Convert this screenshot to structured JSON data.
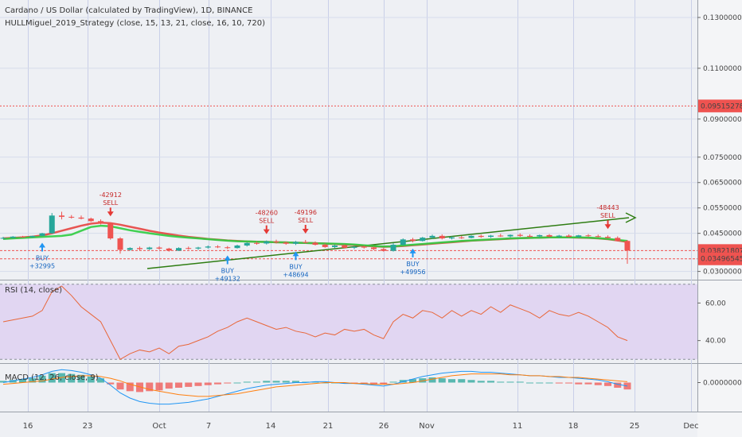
{
  "header": {
    "symbol_title": "Cardano / US Dollar (calculated by TradingView), 1D, BINANCE",
    "strategy_title": "HULLMiguel_2019_Strategy (close, 15, 13, 21, close, 16, 10, 720)"
  },
  "rsi_panel": {
    "title": "RSI (14, close)"
  },
  "macd_panel": {
    "title": "MACD (12, 26, close, 9)"
  },
  "colors": {
    "up": "#26a69a",
    "down": "#ef5350",
    "hull_fast": "#e53935",
    "hull_slow": "#2ecc40",
    "trendline": "#2e7d12",
    "rsi": "#e8673a",
    "rsi_band": "#e1d6f2",
    "macd": "#2196f3",
    "signal": "#ff7f0e"
  },
  "chart_data": [
    {
      "type": "candlestick",
      "title": "Cardano / US Dollar (calculated by TradingView), 1D, BINANCE",
      "xlabel": "",
      "ylabel": "",
      "x_ticks": [
        "16",
        "23",
        "Oct",
        "7",
        "14",
        "21",
        "26",
        "Nov",
        "11",
        "18",
        "25",
        "Dec"
      ],
      "y_ticks": [
        "0.13000000",
        "0.11000000",
        "0.09000000",
        "0.07500000",
        "0.06500000",
        "0.05500000",
        "0.04500000",
        "0.03000000"
      ],
      "ylim": [
        0.028,
        0.135
      ],
      "price_tags": [
        {
          "value": 0.09515278,
          "label": "0.09515278"
        },
        {
          "value": 0.03821807,
          "label": "0.03821807"
        },
        {
          "value": 0.03496545,
          "label": "0.03496545"
        }
      ],
      "candles": [
        [
          0.043,
          0.0436,
          0.0428,
          0.0432
        ],
        [
          0.0432,
          0.0439,
          0.043,
          0.0437
        ],
        [
          0.0437,
          0.044,
          0.0433,
          0.0435
        ],
        [
          0.0435,
          0.0441,
          0.0432,
          0.044
        ],
        [
          0.044,
          0.0452,
          0.0438,
          0.045
        ],
        [
          0.045,
          0.053,
          0.0448,
          0.052
        ],
        [
          0.052,
          0.0535,
          0.0505,
          0.0515
        ],
        [
          0.0515,
          0.0522,
          0.0508,
          0.0512
        ],
        [
          0.0512,
          0.052,
          0.0505,
          0.0508
        ],
        [
          0.0508,
          0.0512,
          0.0495,
          0.0498
        ],
        [
          0.0498,
          0.0505,
          0.0485,
          0.0488
        ],
        [
          0.0488,
          0.0492,
          0.0425,
          0.043
        ],
        [
          0.043,
          0.0435,
          0.037,
          0.0385
        ],
        [
          0.0385,
          0.0395,
          0.0382,
          0.0392
        ],
        [
          0.0392,
          0.0398,
          0.0383,
          0.0388
        ],
        [
          0.0388,
          0.0397,
          0.0384,
          0.0394
        ],
        [
          0.0394,
          0.0399,
          0.0386,
          0.039
        ],
        [
          0.039,
          0.0393,
          0.0378,
          0.0382
        ],
        [
          0.0382,
          0.0395,
          0.038,
          0.0392
        ],
        [
          0.0392,
          0.0398,
          0.0386,
          0.039
        ],
        [
          0.039,
          0.0397,
          0.0385,
          0.0394
        ],
        [
          0.0394,
          0.0402,
          0.039,
          0.0398
        ],
        [
          0.0398,
          0.0403,
          0.0392,
          0.0395
        ],
        [
          0.0395,
          0.04,
          0.0388,
          0.0392
        ],
        [
          0.0392,
          0.0405,
          0.039,
          0.0402
        ],
        [
          0.0402,
          0.0415,
          0.0398,
          0.0412
        ],
        [
          0.0412,
          0.0418,
          0.0405,
          0.041
        ],
        [
          0.041,
          0.0422,
          0.0406,
          0.0418
        ],
        [
          0.0418,
          0.0425,
          0.041,
          0.0414
        ],
        [
          0.0414,
          0.0418,
          0.0405,
          0.0409
        ],
        [
          0.0409,
          0.042,
          0.0404,
          0.0416
        ],
        [
          0.0416,
          0.0424,
          0.041,
          0.0413
        ],
        [
          0.0413,
          0.0418,
          0.0402,
          0.0405
        ],
        [
          0.0405,
          0.041,
          0.0393,
          0.0396
        ],
        [
          0.0396,
          0.0405,
          0.0392,
          0.0402
        ],
        [
          0.0402,
          0.0406,
          0.039,
          0.0393
        ],
        [
          0.0393,
          0.04,
          0.0388,
          0.0397
        ],
        [
          0.0397,
          0.0402,
          0.039,
          0.0394
        ],
        [
          0.0394,
          0.0398,
          0.0384,
          0.0388
        ],
        [
          0.0388,
          0.0392,
          0.0378,
          0.0381
        ],
        [
          0.0381,
          0.0412,
          0.0378,
          0.0405
        ],
        [
          0.0405,
          0.043,
          0.0402,
          0.0426
        ],
        [
          0.0426,
          0.0432,
          0.0415,
          0.042
        ],
        [
          0.042,
          0.0436,
          0.0418,
          0.0433
        ],
        [
          0.0433,
          0.0445,
          0.0428,
          0.044
        ],
        [
          0.044,
          0.0446,
          0.0426,
          0.043
        ],
        [
          0.043,
          0.0438,
          0.0426,
          0.0434
        ],
        [
          0.0434,
          0.044,
          0.0428,
          0.0432
        ],
        [
          0.0432,
          0.0442,
          0.043,
          0.044
        ],
        [
          0.044,
          0.0445,
          0.0432,
          0.0436
        ],
        [
          0.0436,
          0.0444,
          0.0432,
          0.0441
        ],
        [
          0.0441,
          0.0448,
          0.0436,
          0.0438
        ],
        [
          0.0438,
          0.0446,
          0.0434,
          0.0444
        ],
        [
          0.0444,
          0.045,
          0.0436,
          0.044
        ],
        [
          0.044,
          0.0446,
          0.0434,
          0.0438
        ],
        [
          0.0438,
          0.0445,
          0.0433,
          0.0443
        ],
        [
          0.0443,
          0.0447,
          0.0434,
          0.0437
        ],
        [
          0.0437,
          0.0444,
          0.0432,
          0.0441
        ],
        [
          0.0441,
          0.0446,
          0.0434,
          0.0436
        ],
        [
          0.0436,
          0.0444,
          0.0432,
          0.0442
        ],
        [
          0.0442,
          0.0447,
          0.0436,
          0.0439
        ],
        [
          0.0439,
          0.0445,
          0.0434,
          0.0436
        ],
        [
          0.0436,
          0.0442,
          0.043,
          0.0432
        ],
        [
          0.0432,
          0.0438,
          0.0418,
          0.042
        ],
        [
          0.042,
          0.0424,
          0.033,
          0.0382
        ]
      ],
      "series": [
        {
          "name": "",
          "values": [
            0.0428,
            0.043,
            0.0432,
            0.0434,
            0.0436,
            0.0438,
            0.044,
            0.0445,
            0.046,
            0.0475,
            0.048,
            0.0478,
            0.047,
            0.0462,
            0.0456,
            0.045,
            0.0445,
            0.044,
            0.0436,
            0.0433,
            0.043,
            0.0427,
            0.0424,
            0.0421,
            0.0419,
            0.0418,
            0.0417,
            0.0416,
            0.0415,
            0.0414,
            0.0413,
            0.0412,
            0.0411,
            0.041,
            0.0409,
            0.0408,
            0.0406,
            0.0403,
            0.04,
            0.0398,
            0.0399,
            0.0402,
            0.0405,
            0.0408,
            0.0411,
            0.0414,
            0.0417,
            0.042,
            0.0422,
            0.0424,
            0.0426,
            0.0428,
            0.043,
            0.0431,
            0.0432,
            0.0433,
            0.0434,
            0.0434,
            0.0434,
            0.0434,
            0.0433,
            0.0431,
            0.0428,
            0.0424,
            0.042
          ]
        },
        {
          "name": "",
          "values": [
            0.043,
            0.0432,
            0.0434,
            0.0437,
            0.0442,
            0.045,
            0.046,
            0.047,
            0.048,
            0.0488,
            0.0492,
            0.049,
            0.0484,
            0.0476,
            0.0468,
            0.046,
            0.0453,
            0.0447,
            0.0441,
            0.0436,
            0.0432,
            0.0428,
            0.0425,
            0.0422,
            0.042,
            0.0418,
            0.0417,
            0.0416,
            0.0415,
            0.0414,
            0.0413,
            0.0412,
            0.0411,
            0.041,
            0.0408,
            0.0406,
            0.0404,
            0.0401,
            0.0399,
            0.0397,
            0.0398,
            0.04,
            0.0403,
            0.0406,
            0.0409,
            0.0412,
            0.0415,
            0.0418,
            0.0421,
            0.0423,
            0.0425,
            0.0427,
            0.0429,
            0.0431,
            0.0432,
            0.0433,
            0.0434,
            0.0434,
            0.0434,
            0.0433,
            0.0432,
            0.043,
            0.0427,
            0.0422,
            0.0416
          ]
        }
      ],
      "trades": [
        {
          "kind": "BUY",
          "label": "BUY",
          "pnl": "+32995",
          "candle": 4
        },
        {
          "kind": "SELL",
          "label": "SELL",
          "pnl": "-42912",
          "candle": 11
        },
        {
          "kind": "BUY",
          "label": "BUY",
          "pnl": "+49132",
          "candle": 23
        },
        {
          "kind": "SELL",
          "label": "SELL",
          "pnl": "-48260",
          "candle": 27
        },
        {
          "kind": "BUY",
          "label": "BUY",
          "pnl": "+48694",
          "candle": 30
        },
        {
          "kind": "SELL",
          "label": "SELL",
          "pnl": "-49196",
          "candle": 31
        },
        {
          "kind": "BUY",
          "label": "BUY",
          "pnl": "+49956",
          "candle": 42
        },
        {
          "kind": "SELL",
          "label": "SELL",
          "pnl": "-48443",
          "candle": 62
        }
      ]
    },
    {
      "type": "line",
      "title": "RSI (14, close)",
      "xlabel": "",
      "ylabel": "",
      "y_ticks": [
        "60.00",
        "40.00"
      ],
      "ylim": [
        28,
        72
      ],
      "band": [
        30,
        70
      ],
      "series": [
        {
          "name": "",
          "values": [
            50,
            51,
            52,
            53,
            56,
            66,
            69,
            64,
            58,
            54,
            50,
            40,
            30,
            33,
            35,
            34,
            36,
            33,
            37,
            38,
            40,
            42,
            45,
            47,
            50,
            52,
            50,
            48,
            46,
            47,
            45,
            44,
            42,
            44,
            43,
            46,
            45,
            46,
            43,
            41,
            50,
            54,
            52,
            56,
            55,
            52,
            56,
            53,
            56,
            54,
            58,
            55,
            59,
            57,
            55,
            52,
            56,
            54,
            53,
            55,
            53,
            50,
            47,
            42,
            40
          ]
        }
      ]
    },
    {
      "type": "bar",
      "title": "MACD (12, 26, close, 9)",
      "xlabel": "",
      "ylabel": "",
      "y_ticks": [
        "0.0000000"
      ],
      "ylim": [
        -0.003,
        0.0018
      ],
      "histogram": [
        0.0002,
        0.0003,
        0.0004,
        0.0005,
        0.0008,
        0.0011,
        0.0011,
        0.001,
        0.0009,
        0.0007,
        0.0005,
        -0.0002,
        -0.0008,
        -0.001,
        -0.0011,
        -0.001,
        -0.0009,
        -0.0007,
        -0.0006,
        -0.0005,
        -0.0004,
        -0.0003,
        -0.0002,
        -0.0001,
        0.0,
        0.0001,
        0.0001,
        0.0002,
        0.0002,
        0.0002,
        0.0002,
        0.0001,
        0.0001,
        0.0,
        0.0,
        -0.0001,
        -0.0001,
        -0.0001,
        -0.0002,
        -0.0002,
        0.0001,
        0.0003,
        0.0004,
        0.0005,
        0.0006,
        0.0005,
        0.0004,
        0.0004,
        0.0003,
        0.0002,
        0.0002,
        0.0001,
        0.0001,
        0.0001,
        0.0,
        0.0,
        0.0,
        -0.0001,
        -0.0001,
        -0.0002,
        -0.0002,
        -0.0003,
        -0.0004,
        -0.0006,
        -0.0008
      ],
      "series": [
        {
          "name": "",
          "values": [
            0.0,
            0.0002,
            0.0004,
            0.0006,
            0.0009,
            0.0013,
            0.0015,
            0.0014,
            0.0012,
            0.0009,
            0.0005,
            -0.0003,
            -0.0012,
            -0.0018,
            -0.0022,
            -0.0024,
            -0.0025,
            -0.0025,
            -0.0024,
            -0.0023,
            -0.0021,
            -0.0019,
            -0.0016,
            -0.0013,
            -0.001,
            -0.0007,
            -0.0005,
            -0.0003,
            -0.0002,
            -0.0001,
            0.0,
            0.0,
            0.0001,
            0.0001,
            0.0,
            -0.0001,
            -0.0001,
            -0.0002,
            -0.0003,
            -0.0004,
            -0.0002,
            0.0001,
            0.0004,
            0.0007,
            0.0009,
            0.0011,
            0.0012,
            0.0013,
            0.0013,
            0.0012,
            0.0012,
            0.0011,
            0.001,
            0.0009,
            0.0008,
            0.0008,
            0.0007,
            0.0006,
            0.0006,
            0.0005,
            0.0004,
            0.0003,
            0.0001,
            -0.0002,
            -0.0004
          ]
        },
        {
          "name": "",
          "values": [
            -0.0002,
            -0.0001,
            0.0,
            0.0001,
            0.0002,
            0.0004,
            0.0006,
            0.0007,
            0.0008,
            0.0008,
            0.0007,
            0.0005,
            0.0002,
            -0.0002,
            -0.0005,
            -0.0008,
            -0.001,
            -0.0012,
            -0.0014,
            -0.0015,
            -0.0016,
            -0.0016,
            -0.0015,
            -0.0014,
            -0.0013,
            -0.0011,
            -0.0009,
            -0.0007,
            -0.0005,
            -0.0004,
            -0.0003,
            -0.0002,
            -0.0001,
            0.0,
            0.0,
            0.0,
            -0.0001,
            -0.0001,
            -0.0002,
            -0.0002,
            -0.0002,
            -0.0001,
            0.0,
            0.0002,
            0.0004,
            0.0006,
            0.0008,
            0.0009,
            0.001,
            0.001,
            0.001,
            0.001,
            0.0009,
            0.0009,
            0.0008,
            0.0008,
            0.0007,
            0.0007,
            0.0006,
            0.0006,
            0.0005,
            0.0004,
            0.0003,
            0.0002,
            0.0001
          ]
        }
      ]
    }
  ]
}
